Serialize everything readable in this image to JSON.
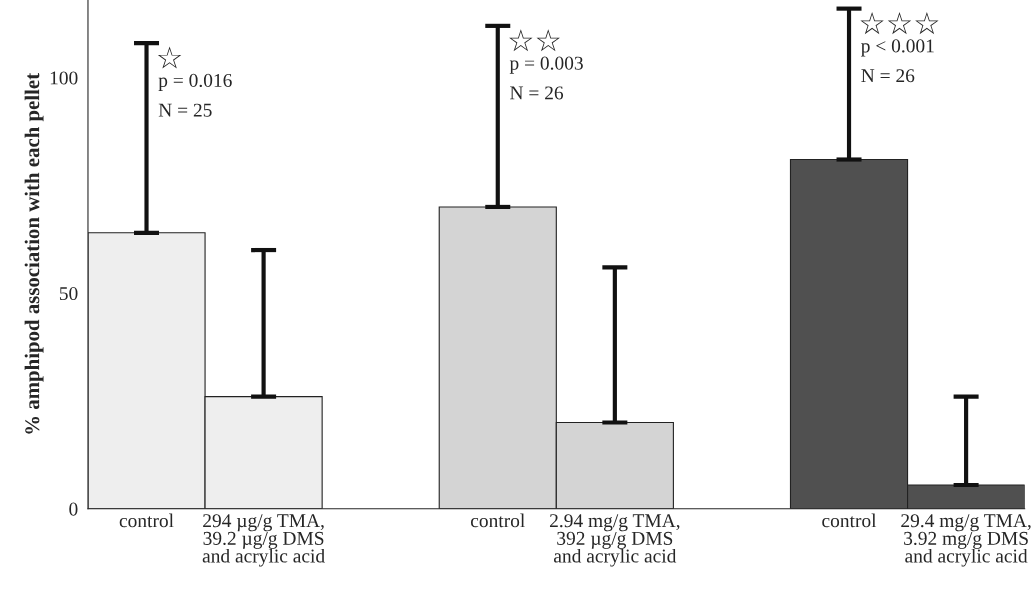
{
  "chart_data": {
    "type": "bar",
    "categories": [
      "control",
      "294 µg/g TMA,\n39.2 µg/g DMS\nand acrylic acid",
      null,
      "control",
      "2.94 mg/g TMA,\n392 µg/g DMS\nand acrylic acid",
      null,
      "control",
      "29.4 mg/g TMA,\n3.92 mg/g DMS\nand acrylic acid"
    ],
    "values": [
      64,
      26,
      null,
      70,
      20,
      null,
      81,
      5.5
    ],
    "errors": [
      [
        64,
        108
      ],
      [
        26,
        60
      ],
      null,
      [
        70,
        112
      ],
      [
        20,
        56
      ],
      null,
      [
        81,
        116
      ],
      [
        5.5,
        26
      ]
    ],
    "colors": [
      "#eeeeee",
      "#eeeeee",
      "#ffffff",
      "#d4d4d4",
      "#d4d4d4",
      "#ffffff",
      "#505050",
      "#505050"
    ],
    "ylabel": "% amphipod association with each pellet",
    "ylim": [
      0,
      118
    ],
    "yticks": [
      0,
      50,
      100
    ],
    "annotations": [
      "☆\np = 0.016\nN = 25",
      "☆☆\np = 0.003\nN = 26",
      "☆☆☆\np < 0.001\nN = 26"
    ],
    "grid": false,
    "legend": false
  }
}
